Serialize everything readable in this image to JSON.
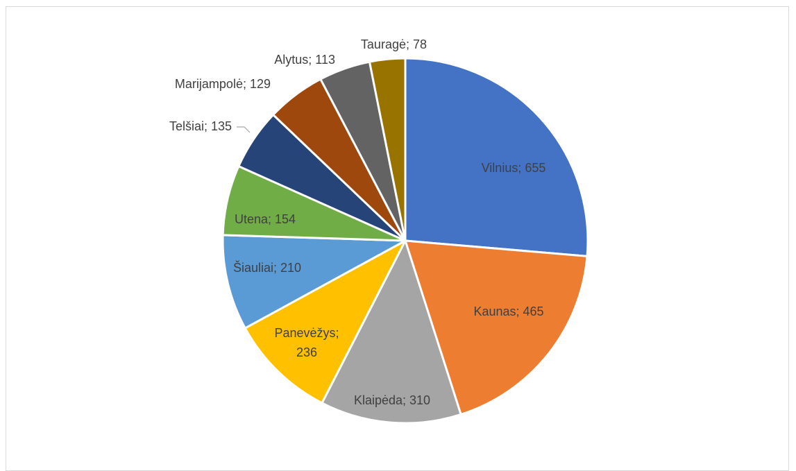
{
  "chart_data": {
    "type": "pie",
    "title": "",
    "legend": "none",
    "label_separator": "; ",
    "slices": [
      {
        "category": "Vilnius",
        "value": 655,
        "color": "#4472C4",
        "label_color": "#404040",
        "label_lines": [
          "Vilnius; 655"
        ]
      },
      {
        "category": "Kaunas",
        "value": 465,
        "color": "#ED7D31",
        "label_color": "#404040",
        "label_lines": [
          "Kaunas; 465"
        ]
      },
      {
        "category": "Klaipėda",
        "value": 310,
        "color": "#A5A5A5",
        "label_color": "#404040",
        "label_lines": [
          "Klaipėda; 310"
        ]
      },
      {
        "category": "Panevėžys",
        "value": 236,
        "color": "#FFC000",
        "label_color": "#404040",
        "label_lines": [
          "Panevėžys;",
          "236"
        ]
      },
      {
        "category": "Šiauliai",
        "value": 210,
        "color": "#5B9BD5",
        "label_color": "#404040",
        "label_lines": [
          "Šiauliai; 210"
        ]
      },
      {
        "category": "Utena",
        "value": 154,
        "color": "#70AD47",
        "label_color": "#404040",
        "label_lines": [
          "Utena; 154"
        ]
      },
      {
        "category": "Telšiai",
        "value": 135,
        "color": "#264478",
        "label_color": "#404040",
        "label_lines": [
          "Telšiai; 135"
        ]
      },
      {
        "category": "Marijampolė",
        "value": 129,
        "color": "#9E480E",
        "label_color": "#404040",
        "label_lines": [
          "Marijampolė; 129"
        ]
      },
      {
        "category": "Alytus",
        "value": 113,
        "color": "#636363",
        "label_color": "#404040",
        "label_lines": [
          "Alytus; 113"
        ]
      },
      {
        "category": "Tauragė",
        "value": 78,
        "color": "#997300",
        "label_color": "#404040",
        "label_lines": [
          "Tauragė; 78"
        ]
      }
    ]
  }
}
